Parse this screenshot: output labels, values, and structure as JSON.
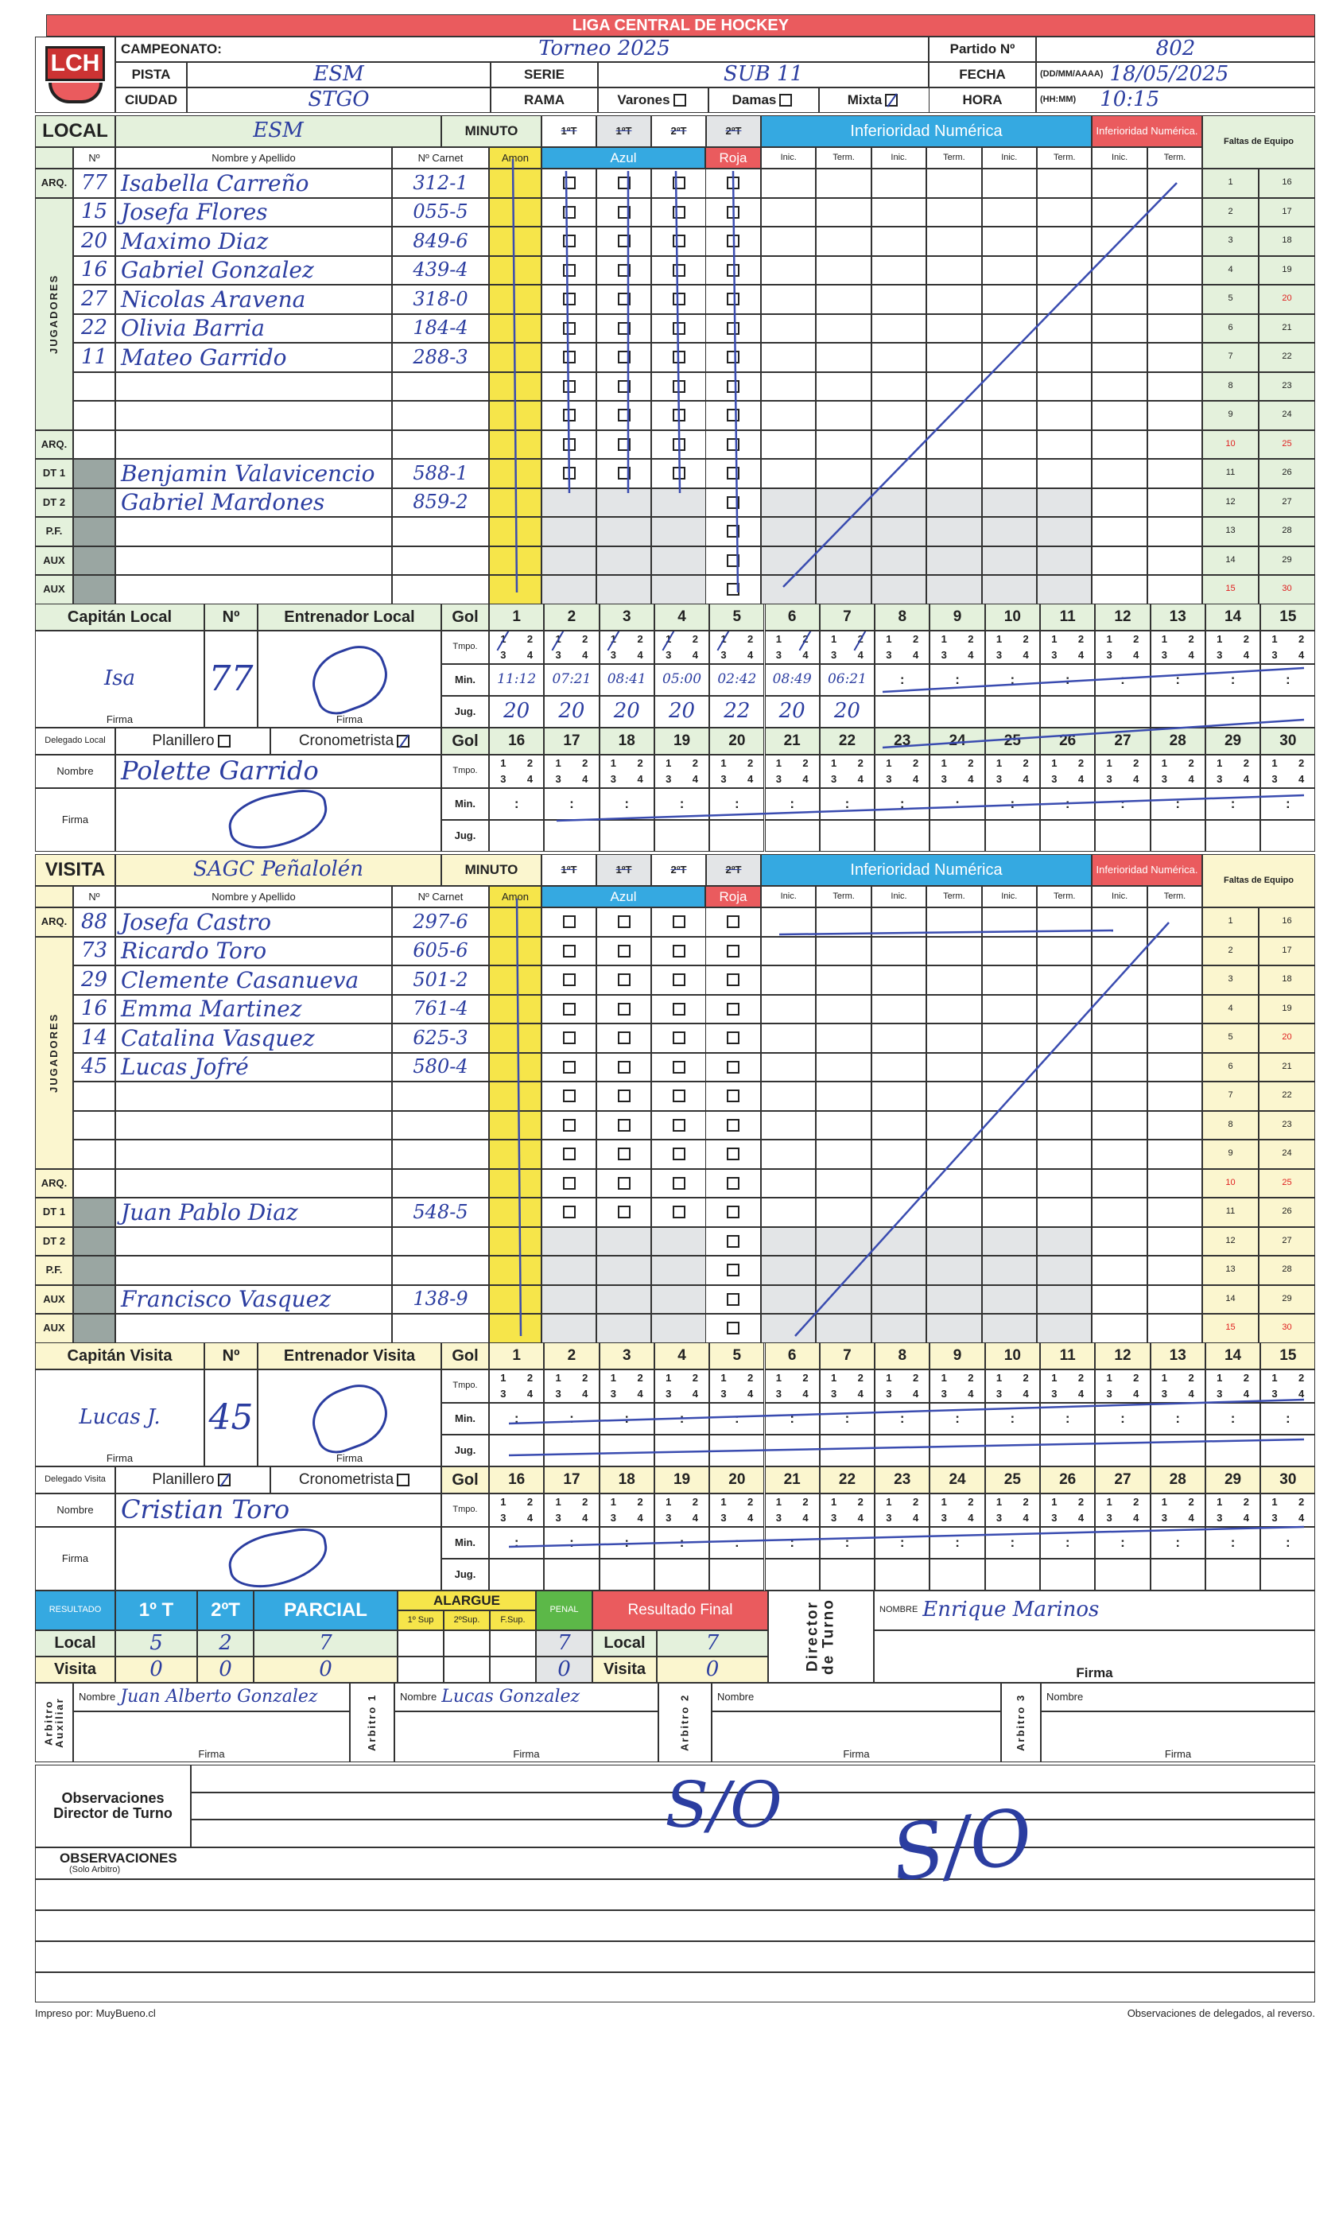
{
  "header": {
    "league": "LIGA CENTRAL DE HOCKEY",
    "logo_text": "LCH",
    "campeonato_label": "CAMPEONATO:",
    "campeonato": "Torneo 2025",
    "partido_label": "Partido Nº",
    "partido": "802",
    "pista_label": "PISTA",
    "pista": "ESM",
    "serie_label": "SERIE",
    "serie": "SUB 11",
    "fecha_label": "FECHA",
    "fecha_format": "(DD/MM/AAAA)",
    "fecha": "18/05/2025",
    "ciudad_label": "CIUDAD",
    "ciudad": "STGO",
    "rama_label": "RAMA",
    "rama_options": [
      {
        "label": "Varones",
        "checked": false
      },
      {
        "label": "Damas",
        "checked": false
      },
      {
        "label": "Mixta",
        "checked": true
      }
    ],
    "hora_label": "HORA",
    "hora_format": "(HH:MM)",
    "hora": "10:15"
  },
  "labels": {
    "minuto": "MINUTO",
    "periods": [
      "1ºT",
      "1ºT",
      "2ºT",
      "2ºT"
    ],
    "inferioridad": "Inferioridad Numérica",
    "inferioridad_short": "Inferioridad Numérica.",
    "faltas": "Faltas de Equipo",
    "num": "Nº",
    "nombre": "Nombre y Apellido",
    "carnet": "Nº Carnet",
    "amon": "Amon",
    "azul": "Azul",
    "roja": "Roja",
    "inic": "Inic.",
    "term": "Term.",
    "jugadores": "JUGADORES",
    "gol": "Gol",
    "tmpo": "Tmpo.",
    "min": "Min.",
    "jug": "Jug.",
    "firma": "Firma",
    "nombre_short": "Nombre",
    "planillero": "Planillero",
    "cronometrista": "Cronometrista",
    "tiempo_options": [
      "1",
      "2",
      "3",
      "4"
    ],
    "colon": ":",
    "goal_numbers": [
      "1",
      "2",
      "3",
      "4",
      "5",
      "6",
      "7",
      "8",
      "9",
      "10",
      "11",
      "12",
      "13",
      "14",
      "15",
      "16",
      "17",
      "18",
      "19",
      "20",
      "21",
      "22",
      "23",
      "24",
      "25",
      "26",
      "27",
      "28",
      "29",
      "30"
    ],
    "falta_numbers": [
      "1",
      "2",
      "3",
      "4",
      "5",
      "6",
      "7",
      "8",
      "9",
      "10",
      "11",
      "12",
      "13",
      "14",
      "15",
      "16",
      "17",
      "18",
      "19",
      "20",
      "21",
      "22",
      "23",
      "24",
      "25",
      "26",
      "27",
      "28",
      "29",
      "30"
    ]
  },
  "local": {
    "label": "LOCAL",
    "team": "ESM",
    "roster": [
      {
        "role": "ARQ.",
        "number": "77",
        "name": "Isabella Carreño",
        "carnet": "312-1"
      },
      {
        "role": "",
        "number": "15",
        "name": "Josefa Flores",
        "carnet": "055-5"
      },
      {
        "role": "",
        "number": "20",
        "name": "Maximo Diaz",
        "carnet": "849-6"
      },
      {
        "role": "",
        "number": "16",
        "name": "Gabriel Gonzalez",
        "carnet": "439-4"
      },
      {
        "role": "",
        "number": "27",
        "name": "Nicolas Aravena",
        "carnet": "318-0"
      },
      {
        "role": "",
        "number": "22",
        "name": "Olivia Barria",
        "carnet": "184-4"
      },
      {
        "role": "",
        "number": "11",
        "name": "Mateo Garrido",
        "carnet": "288-3"
      },
      {
        "role": "",
        "number": "",
        "name": "",
        "carnet": ""
      },
      {
        "role": "",
        "number": "",
        "name": "",
        "carnet": ""
      },
      {
        "role": "ARQ.",
        "number": "",
        "name": "",
        "carnet": ""
      },
      {
        "role": "DT 1",
        "number": "",
        "name": "Benjamin Valavicencio",
        "carnet": "588-1"
      },
      {
        "role": "DT 2",
        "number": "",
        "name": "Gabriel Mardones",
        "carnet": "859-2"
      },
      {
        "role": "P.F.",
        "number": "",
        "name": "",
        "carnet": ""
      },
      {
        "role": "AUX",
        "number": "",
        "name": "",
        "carnet": ""
      },
      {
        "role": "AUX",
        "number": "",
        "name": "",
        "carnet": ""
      }
    ],
    "captain_label": "Capitán Local",
    "captain_signature": "Isa",
    "captain_number": "77",
    "coach_label": "Entrenador Local",
    "delegado_label": "Delegado Local",
    "planillero_checked": false,
    "cronometrista_checked": true,
    "delegado_name": "Polette Garrido",
    "goals": [
      {
        "period": 1,
        "min": "11:12",
        "player": "20"
      },
      {
        "period": 1,
        "min": "07:21",
        "player": "20"
      },
      {
        "period": 1,
        "min": "08:41",
        "player": "20"
      },
      {
        "period": 1,
        "min": "05:00",
        "player": "20"
      },
      {
        "period": 1,
        "min": "02:42",
        "player": "22"
      },
      {
        "period": 2,
        "min": "08:49",
        "player": "20"
      },
      {
        "period": 2,
        "min": "06:21",
        "player": "20"
      }
    ]
  },
  "visita": {
    "label": "VISITA",
    "team": "SAGC Peñalolén",
    "roster": [
      {
        "role": "ARQ.",
        "number": "88",
        "name": "Josefa Castro",
        "carnet": "297-6"
      },
      {
        "role": "",
        "number": "73",
        "name": "Ricardo Toro",
        "carnet": "605-6"
      },
      {
        "role": "",
        "number": "29",
        "name": "Clemente Casanueva",
        "carnet": "501-2"
      },
      {
        "role": "",
        "number": "16",
        "name": "Emma Martinez",
        "carnet": "761-4"
      },
      {
        "role": "",
        "number": "14",
        "name": "Catalina Vasquez",
        "carnet": "625-3"
      },
      {
        "role": "",
        "number": "45",
        "name": "Lucas Jofré",
        "carnet": "580-4"
      },
      {
        "role": "",
        "number": "",
        "name": "",
        "carnet": ""
      },
      {
        "role": "",
        "number": "",
        "name": "",
        "carnet": ""
      },
      {
        "role": "",
        "number": "",
        "name": "",
        "carnet": ""
      },
      {
        "role": "ARQ.",
        "number": "",
        "name": "",
        "carnet": ""
      },
      {
        "role": "DT 1",
        "number": "",
        "name": "Juan Pablo Diaz",
        "carnet": "548-5"
      },
      {
        "role": "DT 2",
        "number": "",
        "name": "",
        "carnet": ""
      },
      {
        "role": "P.F.",
        "number": "",
        "name": "",
        "carnet": ""
      },
      {
        "role": "AUX",
        "number": "",
        "name": "Francisco Vasquez",
        "carnet": "138-9"
      },
      {
        "role": "AUX",
        "number": "",
        "name": "",
        "carnet": ""
      }
    ],
    "captain_label": "Capitán Visita",
    "captain_signature": "Lucas J.",
    "captain_number": "45",
    "coach_label": "Entrenador Visita",
    "delegado_label": "Delegado Visita",
    "planillero_checked": true,
    "cronometrista_checked": false,
    "delegado_name": "Cristian Toro",
    "goals": []
  },
  "results": {
    "resultado_label": "RESULTADO",
    "t1_label": "1º T",
    "t2_label": "2ºT",
    "parcial_label": "PARCIAL",
    "alargue_label": "ALARGUE",
    "alargue_sub": [
      "1º Sup",
      "2ºSup.",
      "F.Sup."
    ],
    "penal_label": "PENAL",
    "final_label": "Resultado Final",
    "local_label": "Local",
    "visita_label": "Visita",
    "local": {
      "t1": "5",
      "t2": "2",
      "parcial": "7",
      "penal": "7",
      "final": "7"
    },
    "visita": {
      "t1": "0",
      "t2": "0",
      "parcial": "0",
      "penal": "0",
      "final": "0"
    },
    "director_label": "Director de Turno",
    "director_nombre_label": "NOMBRE",
    "director_name": "Enrique Marinos",
    "firma_label": "Firma"
  },
  "referees": [
    {
      "label": "Arbitro Auxiliar",
      "name": "Juan Alberto Gonzalez"
    },
    {
      "label": "Arbitro 1",
      "name": "Lucas Gonzalez"
    },
    {
      "label": "Arbitro 2",
      "name": ""
    },
    {
      "label": "Arbitro 3",
      "name": ""
    }
  ],
  "observations": {
    "director_label": "Observaciones Director de Turno",
    "director_text": "S/O",
    "arbitro_label": "OBSERVACIONES",
    "arbitro_sub": "(Solo Arbitro)",
    "arbitro_text": "S/O"
  },
  "footer": {
    "printed_by": "Impreso por: MuyBueno.cl",
    "note": "Observaciones de delegados, al reverso."
  },
  "colors": {
    "red": "#ea5b5e",
    "blue": "#35a9e1",
    "yellow": "#f6e54a",
    "ink": "#2b3da0"
  }
}
